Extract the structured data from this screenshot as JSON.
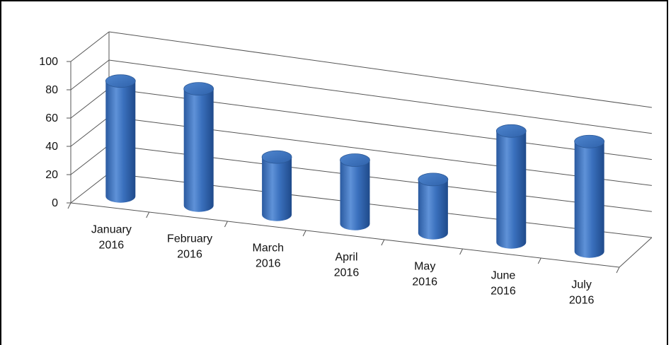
{
  "chart_data": {
    "type": "bar",
    "style": "3d-cylinder",
    "title": "",
    "xlabel": "",
    "ylabel": "",
    "ylim": [
      0,
      100
    ],
    "yticks": [
      0,
      20,
      40,
      60,
      80,
      100
    ],
    "grid": true,
    "legend": "none",
    "categories": [
      [
        "January",
        "2016"
      ],
      [
        "February",
        "2016"
      ],
      [
        "March",
        "2016"
      ],
      [
        "April",
        "2016"
      ],
      [
        "May",
        "2016"
      ],
      [
        "June",
        "2016"
      ],
      [
        "July",
        "2016"
      ]
    ],
    "series": [
      {
        "values": [
          82,
          84,
          42,
          47,
          40,
          84,
          84
        ],
        "color": "#3a6fb8"
      }
    ]
  }
}
